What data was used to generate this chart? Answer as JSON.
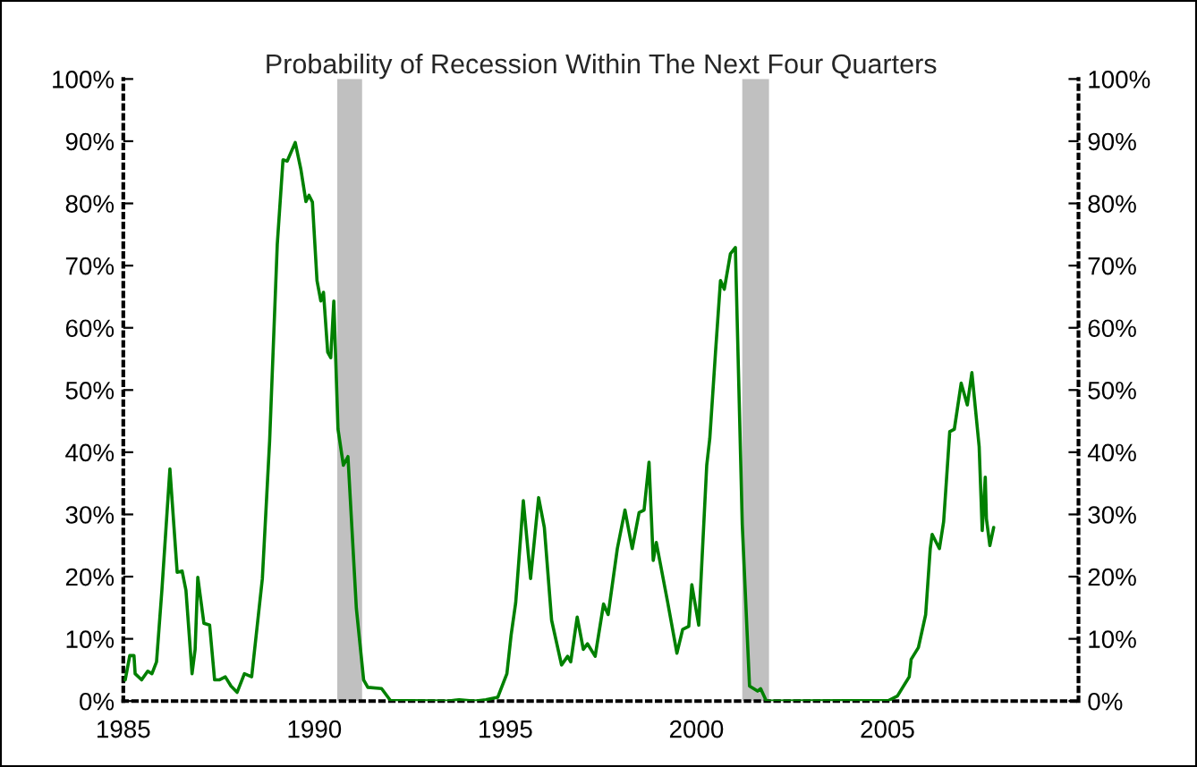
{
  "chart_data": {
    "type": "line",
    "title": "Probability of Recession Within The Next Four Quarters",
    "series": [
      {
        "color": "#008000",
        "x": [
          1985.05,
          1985.17,
          1985.28,
          1985.31,
          1985.48,
          1985.64,
          1985.75,
          1985.87,
          1986.01,
          1986.22,
          1986.41,
          1986.54,
          1986.64,
          1986.8,
          1986.88,
          1986.95,
          1987.11,
          1987.26,
          1987.39,
          1987.51,
          1987.67,
          1987.82,
          1987.98,
          1988.17,
          1988.36,
          1988.64,
          1988.83,
          1989.03,
          1989.18,
          1989.29,
          1989.5,
          1989.65,
          1989.78,
          1989.86,
          1989.95,
          1990.07,
          1990.17,
          1990.24,
          1990.35,
          1990.43,
          1990.51,
          1990.62,
          1990.76,
          1990.88,
          1991.1,
          1991.29,
          1991.4,
          1991.76,
          1991.99,
          1993.5,
          1993.79,
          1994.2,
          1994.49,
          1994.8,
          1995.04,
          1995.15,
          1995.27,
          1995.47,
          1995.66,
          1995.87,
          1996.02,
          1996.21,
          1996.47,
          1996.63,
          1996.71,
          1996.88,
          1997.04,
          1997.15,
          1997.35,
          1997.57,
          1997.69,
          1997.93,
          1998.13,
          1998.32,
          1998.5,
          1998.63,
          1998.76,
          1998.87,
          1998.95,
          1999.25,
          1999.49,
          1999.64,
          1999.8,
          1999.88,
          2000.06,
          2000.27,
          2000.35,
          2000.5,
          2000.63,
          2000.73,
          2000.89,
          2001.02,
          2001.2,
          2001.39,
          2001.6,
          2001.68,
          2001.83,
          2005.03,
          2005.26,
          2005.57,
          2005.62,
          2005.81,
          2006.0,
          2006.12,
          2006.17,
          2006.36,
          2006.47,
          2006.63,
          2006.75,
          2006.93,
          2007.09,
          2007.21,
          2007.4,
          2007.48,
          2007.56,
          2007.59,
          2007.68,
          2007.78
        ],
        "values": [
          3.4,
          7.3,
          7.3,
          4.4,
          3.4,
          4.8,
          4.4,
          6.3,
          17.8,
          37.3,
          20.7,
          20.9,
          17.8,
          4.4,
          8.3,
          19.9,
          12.5,
          12.2,
          3.4,
          3.4,
          3.9,
          2.4,
          1.4,
          4.4,
          3.9,
          19.7,
          41.8,
          73.4,
          87.0,
          86.8,
          89.8,
          85.4,
          80.3,
          81.3,
          80.2,
          67.6,
          64.3,
          65.7,
          56.1,
          55.2,
          64.3,
          43.7,
          37.9,
          39.3,
          14.9,
          3.4,
          2.2,
          2.0,
          0.1,
          0,
          0.2,
          0,
          0.2,
          0.6,
          4.4,
          10.6,
          15.8,
          32.2,
          19.7,
          32.7,
          27.9,
          13.0,
          5.8,
          7.2,
          6.3,
          13.5,
          8.3,
          9.2,
          7.2,
          15.6,
          13.9,
          24.5,
          30.7,
          24.5,
          30.3,
          30.7,
          38.4,
          22.6,
          25.5,
          15.8,
          7.7,
          11.5,
          12.0,
          18.7,
          12.2,
          37.9,
          42.2,
          56.1,
          67.6,
          66.2,
          71.9,
          72.9,
          28.4,
          2.4,
          1.6,
          2.0,
          0,
          0.1,
          0.8,
          3.9,
          6.7,
          8.6,
          13.9,
          24.5,
          26.8,
          24.5,
          28.8,
          43.3,
          43.7,
          51.1,
          47.6,
          52.8,
          40.9,
          27.4,
          36.0,
          29.3,
          25.0,
          27.9
        ]
      }
    ],
    "xlim": [
      1985,
      2010
    ],
    "xticks": [
      1985,
      1990,
      1995,
      2000,
      2005
    ],
    "ylim": [
      0,
      100
    ],
    "yticks": [
      {
        "value": 0,
        "label": "0%"
      },
      {
        "value": 10,
        "label": "10%"
      },
      {
        "value": 20,
        "label": "20%"
      },
      {
        "value": 30,
        "label": "30%"
      },
      {
        "value": 40,
        "label": "40%"
      },
      {
        "value": 50,
        "label": "50%"
      },
      {
        "value": 60,
        "label": "60%"
      },
      {
        "value": 70,
        "label": "70%"
      },
      {
        "value": 80,
        "label": "80%"
      },
      {
        "value": 90,
        "label": "90%"
      },
      {
        "value": 100,
        "label": "100%"
      }
    ],
    "y2lim": [
      0,
      100
    ],
    "y2ticks": [
      {
        "value": 0,
        "label": "0%"
      },
      {
        "value": 10,
        "label": "10%"
      },
      {
        "value": 20,
        "label": "20%"
      },
      {
        "value": 30,
        "label": "30%"
      },
      {
        "value": 40,
        "label": "40%"
      },
      {
        "value": 50,
        "label": "50%"
      },
      {
        "value": 60,
        "label": "60%"
      },
      {
        "value": 70,
        "label": "70%"
      },
      {
        "value": 80,
        "label": "80%"
      },
      {
        "value": 90,
        "label": "90%"
      },
      {
        "value": 100,
        "label": "100%"
      }
    ],
    "bands": [
      {
        "axis": "x",
        "from": 1990.6,
        "to": 1991.25,
        "color": "#c0c0c0"
      },
      {
        "axis": "x",
        "from": 2001.2,
        "to": 2001.9,
        "color": "#c0c0c0"
      }
    ],
    "grid": false,
    "legend": false,
    "marker": "none",
    "line_style": "solid"
  }
}
